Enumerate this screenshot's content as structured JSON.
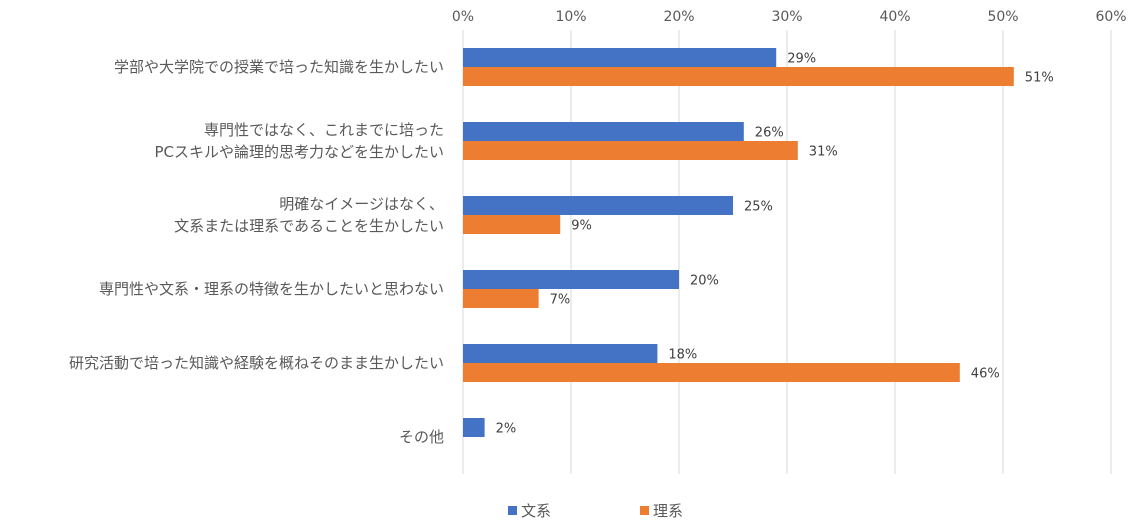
{
  "chart_data": {
    "type": "bar",
    "orientation": "horizontal",
    "categories": [
      [
        "学部や大学院での授業で培った知識を生かしたい"
      ],
      [
        "専門性ではなく、これまでに培った",
        "PCスキルや論理的思考力などを生かしたい"
      ],
      [
        "明確なイメージはなく、",
        "文系または理系であることを生かしたい"
      ],
      [
        "専門性や文系・理系の特徴を生かしたいと思わない"
      ],
      [
        "研究活動で培った知識や経験を概ねそのまま生かしたい"
      ],
      [
        "その他"
      ]
    ],
    "series": [
      {
        "name": "文系",
        "color": "#4472C4",
        "values": [
          29,
          26,
          25,
          20,
          18,
          2
        ],
        "labels": [
          "29%",
          "26%",
          "25%",
          "20%",
          "18%",
          "2%"
        ]
      },
      {
        "name": "理系",
        "color": "#ED7D31",
        "values": [
          51,
          31,
          9,
          7,
          46,
          null
        ],
        "labels": [
          "51%",
          "31%",
          "9%",
          "7%",
          "46%",
          ""
        ]
      }
    ],
    "xlim": [
      0,
      60
    ],
    "xticks": [
      "0%",
      "10%",
      "20%",
      "30%",
      "40%",
      "50%",
      "60%"
    ],
    "xtick_values": [
      0,
      10,
      20,
      30,
      40,
      50,
      60
    ],
    "axis_position": "top",
    "grid": true,
    "legend": "bottom"
  }
}
